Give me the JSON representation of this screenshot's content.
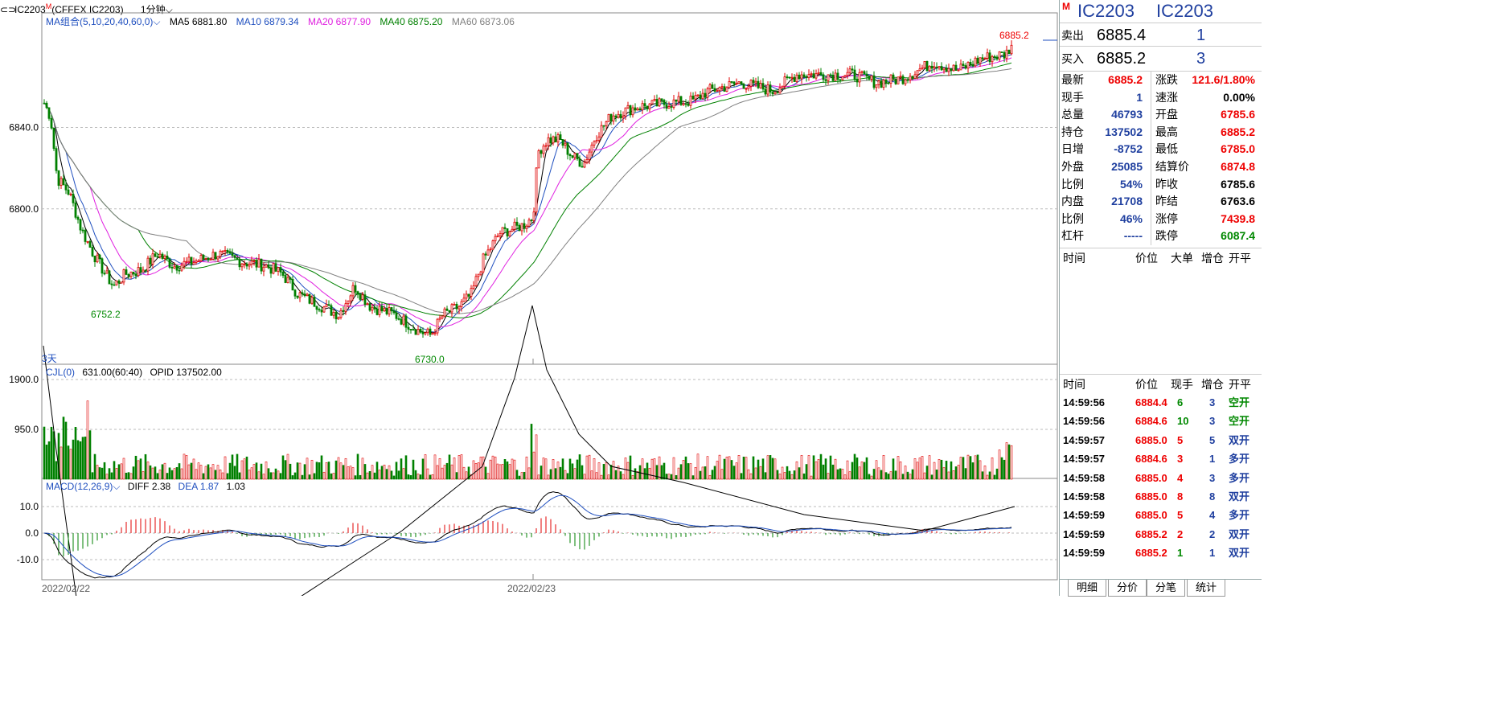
{
  "title": {
    "code": "IC2203",
    "mark": "M",
    "exchange": "(CFFEX IC2203)",
    "period": "1分钟"
  },
  "overlay": {
    "ma_label": "MA组合(5,10,20,40,60,0)",
    "ma5": "MA5 6881.80",
    "ma10": "MA10 6879.34",
    "ma20": "MA20 6877.90",
    "ma40": "MA40 6875.20",
    "ma60": "MA60 6873.06",
    "vol_label": "CJL(0)",
    "vol_val": "631.00(60:40)",
    "opid": "OPID 137502.00",
    "macd_label": "MACD(12,26,9)",
    "diff": "DIFF 2.38",
    "dea": "DEA 1.87",
    "macd": "1.03",
    "days": "3天",
    "high_mark": "6885.2",
    "low_mark1": "6752.2",
    "low_mark2": "6730.0",
    "date1": "2022/02/22",
    "date2": "2022/02/23"
  },
  "colors": {
    "up": "#e00000",
    "down": "#008000",
    "ma5": "#000000",
    "ma10": "#1f4fbf",
    "ma20": "#e020e0",
    "ma40": "#008000",
    "ma60": "#808080"
  },
  "chart_data": [
    {
      "type": "candlestick",
      "title": "",
      "yticks": [
        "6840.0",
        "6800.0"
      ],
      "ylim": [
        6728,
        6890
      ],
      "grid": true
    },
    {
      "type": "bar",
      "title": "",
      "yticks": [
        "1900.0",
        "950.0"
      ],
      "ylim": [
        0,
        1900
      ]
    },
    {
      "type": "bar",
      "title": "",
      "yticks": [
        "10.0",
        "0.0",
        "-10.0"
      ],
      "ylim": [
        -16,
        16
      ]
    }
  ],
  "panel": {
    "code1": "IC2203",
    "code2": "IC2203",
    "mark": "M",
    "ask": {
      "label": "卖出",
      "price": "6885.4",
      "vol": "1"
    },
    "bid": {
      "label": "买入",
      "price": "6885.2",
      "vol": "3"
    },
    "quote": [
      {
        "l1": "最新",
        "v1": "6885.2",
        "c1": "red",
        "l2": "涨跌",
        "v2": "121.6/1.80%",
        "c2": "red"
      },
      {
        "l1": "现手",
        "v1": "1",
        "c1": "blue",
        "l2": "速涨",
        "v2": "0.00%",
        "c2": "blk"
      },
      {
        "l1": "总量",
        "v1": "46793",
        "c1": "blue",
        "l2": "开盘",
        "v2": "6785.6",
        "c2": "red"
      },
      {
        "l1": "持仓",
        "v1": "137502",
        "c1": "blue",
        "l2": "最高",
        "v2": "6885.2",
        "c2": "red"
      },
      {
        "l1": "日增",
        "v1": "-8752",
        "c1": "blue",
        "l2": "最低",
        "v2": "6785.0",
        "c2": "red"
      },
      {
        "l1": "外盘",
        "v1": "25085",
        "c1": "blue",
        "l2": "结算价",
        "v2": "6874.8",
        "c2": "red"
      },
      {
        "l1": "比例",
        "v1": "54%",
        "c1": "blue",
        "l2": "昨收",
        "v2": "6785.6",
        "c2": "blk"
      },
      {
        "l1": "内盘",
        "v1": "21708",
        "c1": "blue",
        "l2": "昨结",
        "v2": "6763.6",
        "c2": "blk"
      },
      {
        "l1": "比例",
        "v1": "46%",
        "c1": "blue",
        "l2": "涨停",
        "v2": "7439.8",
        "c2": "red"
      },
      {
        "l1": "杠杆",
        "v1": "-----",
        "c1": "blue",
        "l2": "跌停",
        "v2": "6087.4",
        "c2": "green"
      }
    ],
    "big_head": {
      "time": "时间",
      "price": "价位",
      "big": "大单",
      "add": "增仓",
      "type": "开平"
    },
    "tick_head": {
      "time": "时间",
      "price": "价位",
      "vol": "现手",
      "add": "增仓",
      "type": "开平"
    },
    "ticks": [
      {
        "time": "14:59:56",
        "price": "6884.4",
        "vol": "6",
        "add": "3",
        "type": "空开",
        "vc": "green",
        "tc": "green"
      },
      {
        "time": "14:59:56",
        "price": "6884.6",
        "vol": "10",
        "add": "3",
        "type": "空开",
        "vc": "green",
        "tc": "green"
      },
      {
        "time": "14:59:57",
        "price": "6885.0",
        "vol": "5",
        "add": "5",
        "type": "双开",
        "vc": "red",
        "tc": "blue"
      },
      {
        "time": "14:59:57",
        "price": "6884.6",
        "vol": "3",
        "add": "1",
        "type": "多开",
        "vc": "red",
        "tc": "blue"
      },
      {
        "time": "14:59:58",
        "price": "6885.0",
        "vol": "4",
        "add": "3",
        "type": "多开",
        "vc": "red",
        "tc": "blue"
      },
      {
        "time": "14:59:58",
        "price": "6885.0",
        "vol": "8",
        "add": "8",
        "type": "双开",
        "vc": "red",
        "tc": "blue"
      },
      {
        "time": "14:59:59",
        "price": "6885.0",
        "vol": "5",
        "add": "4",
        "type": "多开",
        "vc": "red",
        "tc": "blue"
      },
      {
        "time": "14:59:59",
        "price": "6885.2",
        "vol": "2",
        "add": "2",
        "type": "双开",
        "vc": "red",
        "tc": "blue"
      },
      {
        "time": "14:59:59",
        "price": "6885.2",
        "vol": "1",
        "add": "1",
        "type": "双开",
        "vc": "green",
        "tc": "blue"
      }
    ],
    "tabs": [
      "明细",
      "分价",
      "分笔",
      "统计"
    ]
  }
}
